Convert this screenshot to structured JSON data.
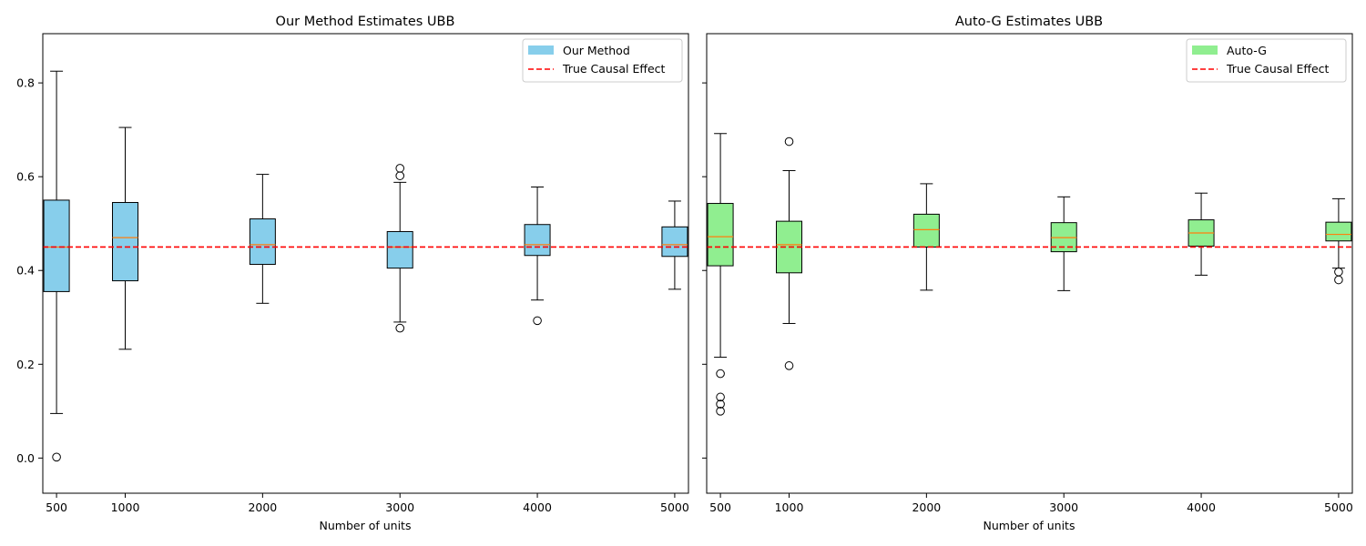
{
  "chart_data": [
    {
      "type": "box",
      "title": "Our Method Estimates UBB",
      "xlabel": "Number of units",
      "ylabel": "",
      "categories": [
        "500",
        "1000",
        "2000",
        "3000",
        "4000",
        "5000"
      ],
      "x": [
        500,
        1000,
        2000,
        3000,
        4000,
        5000
      ],
      "ylim": [
        -0.075,
        0.905
      ],
      "yticks": [
        0.0,
        0.2,
        0.4,
        0.6,
        0.8
      ],
      "ytick_labels": [
        "0.0",
        "0.2",
        "0.4",
        "0.6",
        "0.8"
      ],
      "box_color": "#87ceeb",
      "median_color": "#ff7f0e",
      "reference_line": {
        "value": 0.45,
        "label": "True Causal Effect",
        "color": "#ff0000",
        "style": "dashed"
      },
      "legend": {
        "placement": "top-right",
        "entries": [
          {
            "label": "Our Method",
            "kind": "patch",
            "color": "#87ceeb"
          },
          {
            "label": "True Causal Effect",
            "kind": "dashed-line",
            "color": "#ff0000"
          }
        ]
      },
      "boxes": [
        {
          "x": 500,
          "whisker_low": 0.095,
          "q1": 0.355,
          "median": 0.45,
          "q3": 0.55,
          "whisker_high": 0.825,
          "outliers": [
            0.002
          ]
        },
        {
          "x": 1000,
          "whisker_low": 0.232,
          "q1": 0.378,
          "median": 0.47,
          "q3": 0.545,
          "whisker_high": 0.705,
          "outliers": []
        },
        {
          "x": 2000,
          "whisker_low": 0.33,
          "q1": 0.413,
          "median": 0.455,
          "q3": 0.51,
          "whisker_high": 0.605,
          "outliers": []
        },
        {
          "x": 3000,
          "whisker_low": 0.29,
          "q1": 0.405,
          "median": 0.45,
          "q3": 0.483,
          "whisker_high": 0.588,
          "outliers": [
            0.618,
            0.602,
            0.277
          ]
        },
        {
          "x": 4000,
          "whisker_low": 0.337,
          "q1": 0.432,
          "median": 0.455,
          "q3": 0.498,
          "whisker_high": 0.578,
          "outliers": [
            0.293
          ]
        },
        {
          "x": 5000,
          "whisker_low": 0.36,
          "q1": 0.43,
          "median": 0.455,
          "q3": 0.493,
          "whisker_high": 0.548,
          "outliers": []
        }
      ]
    },
    {
      "type": "box",
      "title": "Auto-G Estimates UBB",
      "xlabel": "Number of units",
      "ylabel": "",
      "categories": [
        "500",
        "1000",
        "2000",
        "3000",
        "4000",
        "5000"
      ],
      "x": [
        500,
        1000,
        2000,
        3000,
        4000,
        5000
      ],
      "ylim": [
        -0.075,
        0.905
      ],
      "sharey": true,
      "yticks": [
        0.0,
        0.2,
        0.4,
        0.6,
        0.8
      ],
      "box_color": "#90ee90",
      "median_color": "#ff7f0e",
      "reference_line": {
        "value": 0.45,
        "label": "True Causal Effect",
        "color": "#ff0000",
        "style": "dashed"
      },
      "legend": {
        "placement": "top-right",
        "entries": [
          {
            "label": "Auto-G",
            "kind": "patch",
            "color": "#90ee90"
          },
          {
            "label": "True Causal Effect",
            "kind": "dashed-line",
            "color": "#ff0000"
          }
        ]
      },
      "boxes": [
        {
          "x": 500,
          "whisker_low": 0.215,
          "q1": 0.41,
          "median": 0.472,
          "q3": 0.543,
          "whisker_high": 0.692,
          "outliers": [
            0.18,
            0.13,
            0.115,
            0.1
          ]
        },
        {
          "x": 1000,
          "whisker_low": 0.287,
          "q1": 0.395,
          "median": 0.455,
          "q3": 0.505,
          "whisker_high": 0.613,
          "outliers": [
            0.675,
            0.197
          ]
        },
        {
          "x": 2000,
          "whisker_low": 0.358,
          "q1": 0.45,
          "median": 0.487,
          "q3": 0.52,
          "whisker_high": 0.585,
          "outliers": []
        },
        {
          "x": 3000,
          "whisker_low": 0.357,
          "q1": 0.44,
          "median": 0.47,
          "q3": 0.502,
          "whisker_high": 0.557,
          "outliers": []
        },
        {
          "x": 4000,
          "whisker_low": 0.39,
          "q1": 0.452,
          "median": 0.48,
          "q3": 0.508,
          "whisker_high": 0.565,
          "outliers": []
        },
        {
          "x": 5000,
          "whisker_low": 0.405,
          "q1": 0.463,
          "median": 0.477,
          "q3": 0.503,
          "whisker_high": 0.553,
          "outliers": [
            0.397,
            0.38
          ]
        }
      ]
    }
  ]
}
